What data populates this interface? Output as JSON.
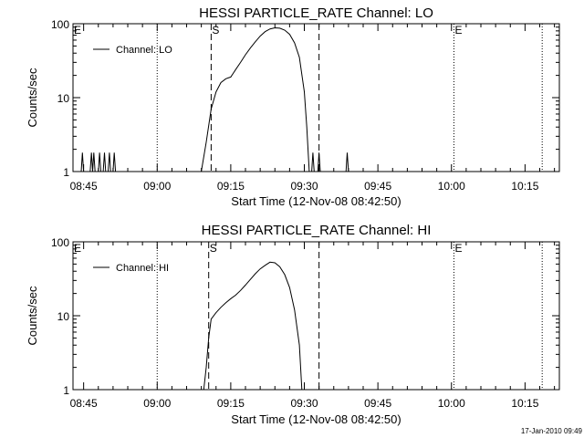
{
  "footer": {
    "date_stamp": "17-Jan-2010 09:49"
  },
  "chart_data": [
    {
      "type": "line",
      "title": "HESSI PARTICLE_RATE Channel: LO",
      "xlabel": "Start Time (12-Nov-08 08:42:50)",
      "ylabel": "Counts/sec",
      "yscale": "log",
      "ylim": [
        1,
        100
      ],
      "xlim": [
        "08:42:50",
        "10:22:00"
      ],
      "x_ticks": [
        "08:45",
        "09:00",
        "09:15",
        "09:30",
        "09:45",
        "10:00",
        "10:15"
      ],
      "y_ticks": [
        "1",
        "10",
        "100"
      ],
      "legend": {
        "position": "top-left",
        "entries": [
          "Channel: LO"
        ]
      },
      "markers": [
        {
          "label": "E",
          "time": "08:42:50",
          "style": "dotted"
        },
        {
          "label": "",
          "time": "09:00:00",
          "style": "dotted"
        },
        {
          "label": "S",
          "time": "09:11:00",
          "style": "dashed"
        },
        {
          "label": "",
          "time": "09:33:00",
          "style": "dashed"
        },
        {
          "label": "E",
          "time": "10:00:30",
          "style": "dotted"
        },
        {
          "label": "",
          "time": "10:18:30",
          "style": "dotted"
        }
      ],
      "series": [
        {
          "name": "Channel: LO",
          "points": [
            [
              "08:42:50",
              1
            ],
            [
              "08:44:30",
              1
            ],
            [
              "08:44:45",
              1.8
            ],
            [
              "08:45:00",
              1
            ],
            [
              "08:46:20",
              1
            ],
            [
              "08:46:35",
              1.8
            ],
            [
              "08:46:50",
              1
            ],
            [
              "08:47:05",
              1.8
            ],
            [
              "08:47:20",
              1
            ],
            [
              "08:48:00",
              1
            ],
            [
              "08:48:15",
              1.8
            ],
            [
              "08:48:30",
              1
            ],
            [
              "08:49:00",
              1
            ],
            [
              "08:49:15",
              1.8
            ],
            [
              "08:49:30",
              1
            ],
            [
              "08:50:00",
              1
            ],
            [
              "08:50:15",
              1.8
            ],
            [
              "08:50:30",
              1
            ],
            [
              "08:51:00",
              1
            ],
            [
              "08:51:15",
              1.8
            ],
            [
              "08:51:30",
              1
            ],
            [
              "09:09:00",
              1
            ],
            [
              "09:10:00",
              2.5
            ],
            [
              "09:11:00",
              7
            ],
            [
              "09:12:00",
              12
            ],
            [
              "09:13:00",
              16
            ],
            [
              "09:14:00",
              18
            ],
            [
              "09:15:00",
              19
            ],
            [
              "09:16:00",
              24
            ],
            [
              "09:17:00",
              30
            ],
            [
              "09:18:00",
              38
            ],
            [
              "09:19:00",
              47
            ],
            [
              "09:20:00",
              57
            ],
            [
              "09:21:00",
              68
            ],
            [
              "09:22:00",
              78
            ],
            [
              "09:23:00",
              85
            ],
            [
              "09:24:00",
              88
            ],
            [
              "09:25:00",
              87
            ],
            [
              "09:26:00",
              82
            ],
            [
              "09:27:00",
              72
            ],
            [
              "09:28:00",
              55
            ],
            [
              "09:29:00",
              35
            ],
            [
              "09:30:00",
              12
            ],
            [
              "09:30:30",
              4
            ],
            [
              "09:31:00",
              1
            ],
            [
              "09:31:30",
              1
            ],
            [
              "09:31:45",
              1.8
            ],
            [
              "09:32:00",
              1
            ],
            [
              "09:32:45",
              1
            ],
            [
              "09:33:00",
              1.8
            ],
            [
              "09:33:15",
              1
            ],
            [
              "09:38:30",
              1
            ],
            [
              "09:38:45",
              1.8
            ],
            [
              "09:39:00",
              1
            ],
            [
              "10:22:00",
              1
            ]
          ]
        }
      ]
    },
    {
      "type": "line",
      "title": "HESSI PARTICLE_RATE Channel: HI",
      "xlabel": "Start Time (12-Nov-08 08:42:50)",
      "ylabel": "Counts/sec",
      "yscale": "log",
      "ylim": [
        1,
        100
      ],
      "xlim": [
        "08:42:50",
        "10:22:00"
      ],
      "x_ticks": [
        "08:45",
        "09:00",
        "09:15",
        "09:30",
        "09:45",
        "10:00",
        "10:15"
      ],
      "y_ticks": [
        "1",
        "10",
        "100"
      ],
      "legend": {
        "position": "top-left",
        "entries": [
          "Channel: HI"
        ]
      },
      "markers": [
        {
          "label": "E",
          "time": "08:42:50",
          "style": "dotted"
        },
        {
          "label": "",
          "time": "09:00:00",
          "style": "dotted"
        },
        {
          "label": "S",
          "time": "09:10:30",
          "style": "dashed"
        },
        {
          "label": "",
          "time": "09:33:00",
          "style": "dashed"
        },
        {
          "label": "E",
          "time": "10:00:30",
          "style": "dotted"
        },
        {
          "label": "",
          "time": "10:18:30",
          "style": "dotted"
        }
      ],
      "series": [
        {
          "name": "Channel: HI",
          "points": [
            [
              "08:42:50",
              1
            ],
            [
              "09:09:30",
              1
            ],
            [
              "09:10:00",
              2
            ],
            [
              "09:10:30",
              5
            ],
            [
              "09:11:00",
              9
            ],
            [
              "09:12:00",
              11
            ],
            [
              "09:13:00",
              13
            ],
            [
              "09:14:00",
              15
            ],
            [
              "09:15:00",
              17
            ],
            [
              "09:16:00",
              19
            ],
            [
              "09:17:00",
              22
            ],
            [
              "09:18:00",
              26
            ],
            [
              "09:19:00",
              31
            ],
            [
              "09:20:00",
              37
            ],
            [
              "09:21:00",
              43
            ],
            [
              "09:22:00",
              48
            ],
            [
              "09:23:00",
              53
            ],
            [
              "09:24:00",
              52
            ],
            [
              "09:25:00",
              46
            ],
            [
              "09:26:00",
              36
            ],
            [
              "09:27:00",
              24
            ],
            [
              "09:28:00",
              12
            ],
            [
              "09:29:00",
              4
            ],
            [
              "09:29:30",
              1
            ],
            [
              "10:22:00",
              1
            ]
          ]
        }
      ]
    }
  ]
}
